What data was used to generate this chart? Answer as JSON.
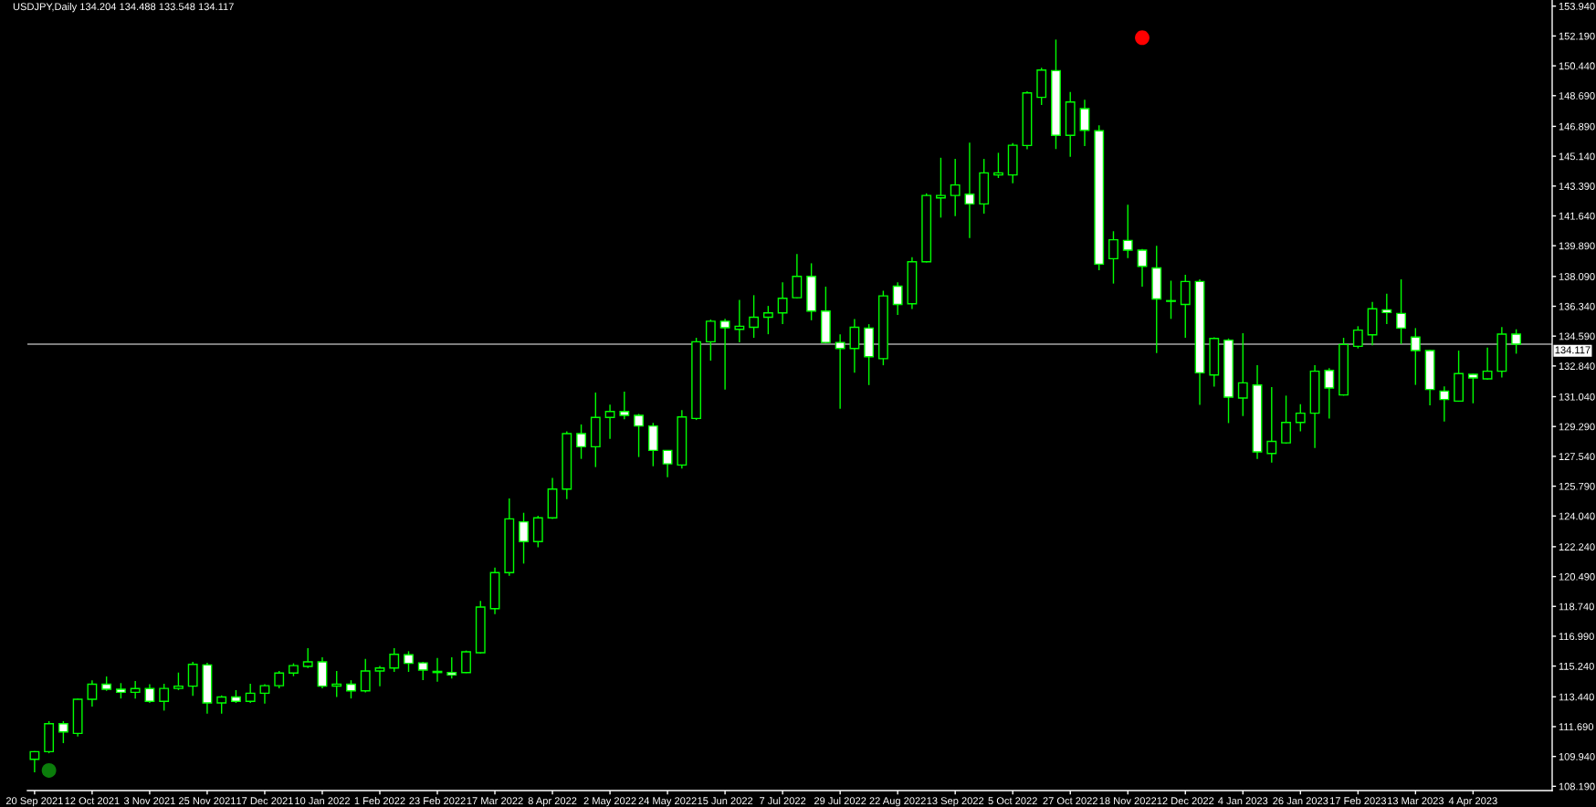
{
  "chart_data": {
    "type": "candlestick",
    "title": "USDJPY,Daily 134.204 134.488 133.548 134.117",
    "categories": [
      "20 Sep 2021",
      null,
      null,
      null,
      "12 Oct 2021",
      null,
      null,
      null,
      "3 Nov 2021",
      null,
      null,
      null,
      "25 Nov 2021",
      null,
      null,
      null,
      "17 Dec 2021",
      null,
      null,
      null,
      "10 Jan 2022",
      null,
      null,
      null,
      "1 Feb 2022",
      null,
      null,
      null,
      "23 Feb 2022",
      null,
      null,
      null,
      "17 Mar 2022",
      null,
      null,
      null,
      "8 Apr 2022",
      null,
      null,
      null,
      "2 May 2022",
      null,
      null,
      null,
      "24 May 2022",
      null,
      null,
      null,
      "15 Jun 2022",
      null,
      null,
      null,
      "7 Jul 2022",
      null,
      null,
      null,
      "29 Jul 2022",
      null,
      null,
      null,
      "22 Aug 2022",
      null,
      null,
      null,
      "13 Sep 2022",
      null,
      null,
      null,
      "5 Oct 2022",
      null,
      null,
      null,
      "27 Oct 2022",
      null,
      null,
      null,
      "18 Nov 2022",
      null,
      null,
      null,
      "12 Dec 2022",
      null,
      null,
      null,
      "4 Jan 2023",
      null,
      null,
      null,
      "26 Jan 2023",
      null,
      null,
      null,
      "17 Feb 2023",
      null,
      null,
      null,
      "13 Mar 2023",
      null,
      null,
      null,
      "4 Apr 2023",
      null,
      null,
      null,
      null,
      null
    ],
    "series": [
      {
        "type": "candlestick",
        "color": "#00ff00",
        "ohlc": [
          [
            109.77,
            110.26,
            109.01,
            110.22
          ],
          [
            110.22,
            112.01,
            110.13,
            111.86
          ],
          [
            111.86,
            112.01,
            110.72,
            111.38
          ],
          [
            111.29,
            113.34,
            111.11,
            113.29
          ],
          [
            113.29,
            114.41,
            112.86,
            114.18
          ],
          [
            114.18,
            114.63,
            113.79,
            113.88
          ],
          [
            113.88,
            114.24,
            113.34,
            113.7
          ],
          [
            113.7,
            114.36,
            113.34,
            113.92
          ],
          [
            113.92,
            114.18,
            113.08,
            113.17
          ],
          [
            113.17,
            114.2,
            112.63,
            113.93
          ],
          [
            113.93,
            114.86,
            113.83,
            114.06
          ],
          [
            114.06,
            115.49,
            113.49,
            115.34
          ],
          [
            115.31,
            115.43,
            112.45,
            113.08
          ],
          [
            113.08,
            113.52,
            112.45,
            113.43
          ],
          [
            113.43,
            113.83,
            113.08,
            113.17
          ],
          [
            113.17,
            114.2,
            113.08,
            113.65
          ],
          [
            113.65,
            114.18,
            113.04,
            114.09
          ],
          [
            114.09,
            114.95,
            113.93,
            114.83
          ],
          [
            114.83,
            115.4,
            114.65,
            115.27
          ],
          [
            115.22,
            116.29,
            115.13,
            115.49
          ],
          [
            115.49,
            115.75,
            113.93,
            114.06
          ],
          [
            114.06,
            114.95,
            113.43,
            114.18
          ],
          [
            114.18,
            114.41,
            113.34,
            113.79
          ],
          [
            113.79,
            115.66,
            113.7,
            114.95
          ],
          [
            114.95,
            115.25,
            114.06,
            115.13
          ],
          [
            115.13,
            116.29,
            114.9,
            115.93
          ],
          [
            115.9,
            116.11,
            114.9,
            115.4
          ],
          [
            115.43,
            115.49,
            114.42,
            115.01
          ],
          [
            114.93,
            115.72,
            114.33,
            114.86
          ],
          [
            114.86,
            115.76,
            114.51,
            114.72
          ],
          [
            114.86,
            116.15,
            114.83,
            116.08
          ],
          [
            116.02,
            119.06,
            115.97,
            118.7
          ],
          [
            118.61,
            121.02,
            118.29,
            120.72
          ],
          [
            120.72,
            125.07,
            120.54,
            123.87
          ],
          [
            123.7,
            124.23,
            121.25,
            122.54
          ],
          [
            122.54,
            124.05,
            122.21,
            123.93
          ],
          [
            123.93,
            126.28,
            123.87,
            125.62
          ],
          [
            125.62,
            129.0,
            125.03,
            128.87
          ],
          [
            128.87,
            129.41,
            127.39,
            128.1
          ],
          [
            128.1,
            131.28,
            126.91,
            129.82
          ],
          [
            129.82,
            130.57,
            128.57,
            130.17
          ],
          [
            130.17,
            131.33,
            129.71,
            129.94
          ],
          [
            129.94,
            130.03,
            127.5,
            129.32
          ],
          [
            129.32,
            129.5,
            126.96,
            127.89
          ],
          [
            127.89,
            127.89,
            126.32,
            127.1
          ],
          [
            127.03,
            130.25,
            126.82,
            129.85
          ],
          [
            129.76,
            134.49,
            129.67,
            134.26
          ],
          [
            134.26,
            135.56,
            133.15,
            135.46
          ],
          [
            135.46,
            135.6,
            131.46,
            135.08
          ],
          [
            134.99,
            136.72,
            134.22,
            135.17
          ],
          [
            135.11,
            136.99,
            134.49,
            135.7
          ],
          [
            135.7,
            136.36,
            134.7,
            135.95
          ],
          [
            135.95,
            137.74,
            135.29,
            136.81
          ],
          [
            136.84,
            139.4,
            136.81,
            138.09
          ],
          [
            138.09,
            138.86,
            135.52,
            136.06
          ],
          [
            136.06,
            137.49,
            134.17,
            134.22
          ],
          [
            134.22,
            134.7,
            130.33,
            133.86
          ],
          [
            133.86,
            135.59,
            132.44,
            135.11
          ],
          [
            135.06,
            135.29,
            131.72,
            133.38
          ],
          [
            133.27,
            137.25,
            132.88,
            136.95
          ],
          [
            137.52,
            137.74,
            135.83,
            136.45
          ],
          [
            136.49,
            139.22,
            136.18,
            138.95
          ],
          [
            138.95,
            142.96,
            138.91,
            142.84
          ],
          [
            142.7,
            145.05,
            141.54,
            142.84
          ],
          [
            142.84,
            144.98,
            141.63,
            143.45
          ],
          [
            142.91,
            145.94,
            140.34,
            142.34
          ],
          [
            142.34,
            144.98,
            141.77,
            144.16
          ],
          [
            144.04,
            145.34,
            143.86,
            144.16
          ],
          [
            144.04,
            145.91,
            143.55,
            145.78
          ],
          [
            145.77,
            148.94,
            145.55,
            148.85
          ],
          [
            148.59,
            150.33,
            148.14,
            150.19
          ],
          [
            150.16,
            151.98,
            145.56,
            146.36
          ],
          [
            146.36,
            148.91,
            145.11,
            148.32
          ],
          [
            147.93,
            148.45,
            145.74,
            146.66
          ],
          [
            146.63,
            146.95,
            138.45,
            138.81
          ],
          [
            139.13,
            140.74,
            137.67,
            140.24
          ],
          [
            140.2,
            142.3,
            139.16,
            139.63
          ],
          [
            139.63,
            139.7,
            137.49,
            138.68
          ],
          [
            138.59,
            139.88,
            133.6,
            136.77
          ],
          [
            136.67,
            137.84,
            135.6,
            136.63
          ],
          [
            136.45,
            138.18,
            134.49,
            137.79
          ],
          [
            137.79,
            137.92,
            130.56,
            132.44
          ],
          [
            132.31,
            134.52,
            131.63,
            134.45
          ],
          [
            134.35,
            134.45,
            129.49,
            131.01
          ],
          [
            130.96,
            134.76,
            129.9,
            131.85
          ],
          [
            131.72,
            132.88,
            127.39,
            127.8
          ],
          [
            127.71,
            131.6,
            127.17,
            128.42
          ],
          [
            128.33,
            131.1,
            128.28,
            129.53
          ],
          [
            129.53,
            130.6,
            129.0,
            130.07
          ],
          [
            130.07,
            132.89,
            128.03,
            132.53
          ],
          [
            132.58,
            132.71,
            129.76,
            131.55
          ],
          [
            131.14,
            134.49,
            131.1,
            134.1
          ],
          [
            133.99,
            135.17,
            133.87,
            134.94
          ],
          [
            134.67,
            136.6,
            134.05,
            136.19
          ],
          [
            136.13,
            137.08,
            135.29,
            135.97
          ],
          [
            135.92,
            137.92,
            134.13,
            135.06
          ],
          [
            134.53,
            135.06,
            131.73,
            133.74
          ],
          [
            133.74,
            133.78,
            130.53,
            131.46
          ],
          [
            131.37,
            131.64,
            129.58,
            130.87
          ],
          [
            130.78,
            133.74,
            130.74,
            132.39
          ],
          [
            132.35,
            132.39,
            130.65,
            132.14
          ],
          [
            132.08,
            133.92,
            132.03,
            132.53
          ],
          [
            132.53,
            135.12,
            132.17,
            134.71
          ],
          [
            134.71,
            134.99,
            133.56,
            134.12
          ],
          null,
          null
        ]
      },
      {
        "type": "scatter",
        "color": "#0b7d0b",
        "marker": "circle",
        "values": [
          null,
          109.12,
          null,
          null,
          null,
          null,
          null,
          null,
          null,
          null,
          null,
          null,
          null,
          null,
          null,
          null,
          null,
          null,
          null,
          null,
          null,
          null,
          null,
          null,
          null,
          null,
          null,
          null,
          null,
          null,
          null,
          null,
          null,
          null,
          null,
          null,
          null,
          null,
          null,
          null,
          null,
          null,
          null,
          null,
          null,
          null,
          null,
          null,
          null,
          null,
          null,
          null,
          null,
          null,
          null,
          null,
          null,
          null,
          null,
          null,
          null,
          null,
          null,
          null,
          null,
          null,
          null,
          null,
          null,
          null,
          null,
          null,
          null,
          null,
          null,
          null,
          null,
          null,
          null,
          null,
          null,
          null,
          null,
          null,
          null,
          null,
          null,
          null,
          null,
          null,
          null,
          null,
          null,
          null,
          null,
          null,
          null,
          null,
          null,
          null,
          null,
          null,
          null,
          null,
          null,
          null
        ]
      },
      {
        "type": "scatter",
        "color": "#ff0000",
        "marker": "circle",
        "values": [
          null,
          null,
          null,
          null,
          null,
          null,
          null,
          null,
          null,
          null,
          null,
          null,
          null,
          null,
          null,
          null,
          null,
          null,
          null,
          null,
          null,
          null,
          null,
          null,
          null,
          null,
          null,
          null,
          null,
          null,
          null,
          null,
          null,
          null,
          null,
          null,
          null,
          null,
          null,
          null,
          null,
          null,
          null,
          null,
          null,
          null,
          null,
          null,
          null,
          null,
          null,
          null,
          null,
          null,
          null,
          null,
          null,
          null,
          null,
          null,
          null,
          null,
          null,
          null,
          null,
          null,
          null,
          null,
          null,
          null,
          null,
          null,
          null,
          null,
          null,
          null,
          null,
          152.09,
          null,
          null,
          null,
          null,
          null,
          null,
          null,
          null,
          null,
          null,
          null,
          null,
          null,
          null,
          null,
          null,
          null,
          null,
          null,
          null,
          null,
          null,
          null,
          null,
          null,
          null,
          null,
          null
        ]
      }
    ],
    "ylim": [
      107.94,
      154.3
    ],
    "yticks": [
      {
        "value": 108.19,
        "label": "108.190"
      },
      {
        "value": 109.94,
        "label": "109.940"
      },
      {
        "value": 111.69,
        "label": "111.690"
      },
      {
        "value": 113.44,
        "label": "113.440"
      },
      {
        "value": 115.24,
        "label": "115.240"
      },
      {
        "value": 116.99,
        "label": "116.990"
      },
      {
        "value": 118.74,
        "label": "118.740"
      },
      {
        "value": 120.49,
        "label": "120.490"
      },
      {
        "value": 122.24,
        "label": "122.240"
      },
      {
        "value": 124.04,
        "label": "124.040"
      },
      {
        "value": 125.79,
        "label": "125.790"
      },
      {
        "value": 127.54,
        "label": "127.540"
      },
      {
        "value": 129.29,
        "label": "129.290"
      },
      {
        "value": 131.04,
        "label": "131.040"
      },
      {
        "value": 132.84,
        "label": "132.840"
      },
      {
        "value": 134.59,
        "label": "134.590"
      },
      {
        "value": 136.34,
        "label": "136.340"
      },
      {
        "value": 138.09,
        "label": "138.090"
      },
      {
        "value": 139.89,
        "label": "139.890"
      },
      {
        "value": 141.64,
        "label": "141.640"
      },
      {
        "value": 143.39,
        "label": "143.390"
      },
      {
        "value": 145.14,
        "label": "145.140"
      },
      {
        "value": 146.89,
        "label": "146.890"
      },
      {
        "value": 148.69,
        "label": "148.690"
      },
      {
        "value": 150.44,
        "label": "150.440"
      },
      {
        "value": 152.19,
        "label": "152.190"
      },
      {
        "value": 153.94,
        "label": "153.940"
      }
    ],
    "ref_lines": [
      {
        "axis": "y",
        "value": 134.117,
        "label": "134.117",
        "color": "#a9a9a9"
      }
    ],
    "grid": false
  }
}
